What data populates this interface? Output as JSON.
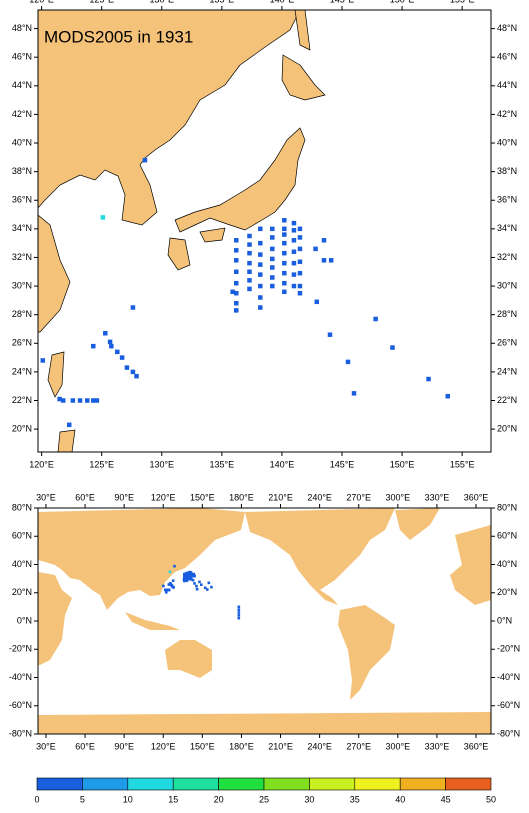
{
  "chart_data": [
    {
      "type": "map",
      "title": "MODS2005 in 1931",
      "xlim": [
        119.7,
        157.4
      ],
      "ylim": [
        18.4,
        49.3
      ],
      "xticks": [
        {
          "value": 120,
          "label": "120°E"
        },
        {
          "value": 125,
          "label": "125°E"
        },
        {
          "value": 130,
          "label": "130°E"
        },
        {
          "value": 135,
          "label": "135°E"
        },
        {
          "value": 140,
          "label": "140°E"
        },
        {
          "value": 145,
          "label": "145°E"
        },
        {
          "value": 150,
          "label": "150°E"
        },
        {
          "value": 155,
          "label": "155°E"
        }
      ],
      "yticks": [
        {
          "value": 20,
          "label": "20°N"
        },
        {
          "value": 22,
          "label": "22°N"
        },
        {
          "value": 24,
          "label": "24°N"
        },
        {
          "value": 26,
          "label": "26°N"
        },
        {
          "value": 28,
          "label": "28°N"
        },
        {
          "value": 30,
          "label": "30°N"
        },
        {
          "value": 32,
          "label": "32°N"
        },
        {
          "value": 34,
          "label": "34°N"
        },
        {
          "value": 36,
          "label": "36°N"
        },
        {
          "value": 38,
          "label": "38°N"
        },
        {
          "value": 40,
          "label": "40°N"
        },
        {
          "value": 42,
          "label": "42°N"
        },
        {
          "value": 44,
          "label": "44°N"
        },
        {
          "value": 46,
          "label": "46°N"
        },
        {
          "value": 48,
          "label": "48°N"
        }
      ],
      "series": [
        {
          "color": "#1a5ee0",
          "x": [
            120.1,
            121.5,
            121.8,
            122.3,
            122.6,
            123.2,
            123.8,
            124.3,
            124.6,
            124.3,
            125.3,
            125.7,
            125.8,
            126.3,
            126.7,
            127.1,
            127.6,
            127.9,
            127.6,
            128.6,
            136.2,
            136.2,
            136.2,
            136.2,
            136.2,
            136.2,
            136.2,
            136.2,
            137.3,
            137.3,
            137.3,
            137.3,
            137.3,
            137.3,
            137.3,
            138.2,
            138.2,
            138.2,
            138.2,
            138.2,
            138.2,
            138.2,
            138.2,
            139.2,
            139.2,
            139.2,
            139.2,
            139.2,
            139.2,
            139.2,
            140.2,
            140.2,
            140.2,
            140.2,
            140.2,
            140.2,
            140.2,
            140.2,
            140.2,
            141.0,
            141.0,
            141.0,
            141.0,
            141.0,
            141.0,
            141.0,
            141.5,
            141.5,
            141.5,
            141.5,
            141.5,
            141.5,
            141.5,
            142.8,
            143.5,
            143.5,
            144.1,
            142.9,
            144.0,
            145.5,
            146.0,
            147.8,
            149.2,
            152.2,
            153.8,
            135.9
          ],
          "y": [
            24.8,
            22.1,
            22.0,
            20.3,
            22.0,
            22.0,
            22.0,
            22.0,
            22.0,
            25.8,
            26.7,
            26.1,
            25.8,
            25.4,
            25.0,
            24.3,
            24.0,
            23.7,
            28.5,
            38.8,
            33.2,
            32.5,
            31.8,
            31.0,
            30.2,
            29.5,
            28.8,
            28.3,
            33.5,
            32.9,
            32.3,
            31.6,
            31.0,
            30.4,
            29.8,
            34.0,
            33.0,
            32.2,
            31.5,
            30.8,
            30.0,
            29.2,
            28.5,
            34.0,
            33.4,
            32.6,
            31.9,
            31.3,
            30.6,
            30.0,
            34.6,
            34.0,
            33.6,
            33.0,
            32.3,
            31.6,
            30.9,
            30.2,
            29.6,
            34.4,
            33.9,
            33.2,
            32.4,
            31.6,
            30.8,
            30.0,
            34.0,
            33.4,
            32.6,
            31.7,
            30.9,
            30.0,
            29.5,
            32.6,
            33.2,
            31.8,
            31.8,
            28.9,
            26.6,
            24.7,
            22.5,
            27.7,
            25.7,
            23.5,
            22.3,
            29.6
          ]
        },
        {
          "color": "#20d8e0",
          "x": [
            125.1
          ],
          "y": [
            34.8
          ]
        }
      ]
    },
    {
      "type": "map",
      "xlim": [
        23.9,
        371.5
      ],
      "ylim": [
        -80,
        80
      ],
      "xticks": [
        {
          "value": 30,
          "label": "30°E"
        },
        {
          "value": 60,
          "label": "60°E"
        },
        {
          "value": 90,
          "label": "90°E"
        },
        {
          "value": 120,
          "label": "120°E"
        },
        {
          "value": 150,
          "label": "150°E"
        },
        {
          "value": 180,
          "label": "180°E"
        },
        {
          "value": 210,
          "label": "210°E"
        },
        {
          "value": 240,
          "label": "240°E"
        },
        {
          "value": 270,
          "label": "270°E"
        },
        {
          "value": 300,
          "label": "300°E"
        },
        {
          "value": 330,
          "label": "330°E"
        },
        {
          "value": 360,
          "label": "360°E"
        }
      ],
      "yticks": [
        {
          "value": -80,
          "label": "-80°N"
        },
        {
          "value": -60,
          "label": "-60°N"
        },
        {
          "value": -40,
          "label": "-40°N"
        },
        {
          "value": -20,
          "label": "-20°N"
        },
        {
          "value": 0,
          "label": "0°N"
        },
        {
          "value": 20,
          "label": "20°N"
        },
        {
          "value": 40,
          "label": "40°N"
        },
        {
          "value": 60,
          "label": "60°N"
        },
        {
          "value": 80,
          "label": "80°N"
        }
      ],
      "series": [
        {
          "color": "#1a5ee0",
          "x": [
            178,
            178,
            178,
            178,
            178,
            155,
            157
          ],
          "y": [
            10,
            8,
            6,
            4,
            2,
            27,
            24
          ]
        }
      ]
    },
    {
      "type": "colorbar",
      "ticks": [
        0,
        5,
        10,
        15,
        20,
        25,
        30,
        35,
        40,
        45,
        50
      ],
      "colors": [
        "#1a5ee0",
        "#1e9be8",
        "#20d8e0",
        "#20e0a0",
        "#20e040",
        "#80e020",
        "#c8f020",
        "#f0f020",
        "#f0b020",
        "#e86020"
      ]
    }
  ]
}
